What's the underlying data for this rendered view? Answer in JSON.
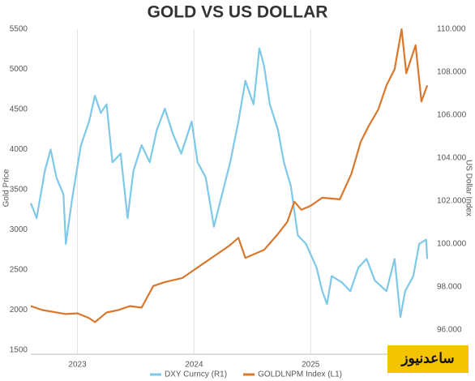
{
  "chart_data": {
    "type": "line",
    "title": "GOLD VS US DOLLAR",
    "ylabel": "Gold Price",
    "y2label": "US Dollar Index",
    "watermark": "ساعدنیوز",
    "xlim": [
      2022.6,
      2026.02
    ],
    "xticks": [
      2023,
      2024,
      2025
    ],
    "ylim": [
      1500,
      5500
    ],
    "yticks": [
      1500,
      2000,
      2500,
      3000,
      3500,
      4000,
      4500,
      5000,
      5500
    ],
    "y2lim": [
      95.05,
      110
    ],
    "y2ticks": [
      {
        "value": 96,
        "label": "96.000"
      },
      {
        "value": 98,
        "label": "98.000"
      },
      {
        "value": 100,
        "label": "100.000"
      },
      {
        "value": 102,
        "label": "102.000"
      },
      {
        "value": 104,
        "label": "104.000"
      },
      {
        "value": 106,
        "label": "106.000"
      },
      {
        "value": 108,
        "label": "108.000"
      },
      {
        "value": 110,
        "label": "110.000"
      }
    ],
    "grid": true,
    "legend": "bottom",
    "series": [
      {
        "name": "DXY Curncy (R1)",
        "color": "#7ec8e8",
        "axis": "y2",
        "x": [
          2022.6,
          2022.65,
          2022.72,
          2022.77,
          2022.82,
          2022.88,
          2022.9,
          2022.96,
          2023.03,
          2023.1,
          2023.15,
          2023.2,
          2023.25,
          2023.3,
          2023.37,
          2023.43,
          2023.48,
          2023.55,
          2023.62,
          2023.68,
          2023.75,
          2023.82,
          2023.89,
          2023.98,
          2024.03,
          2024.1,
          2024.17,
          2024.24,
          2024.31,
          2024.38,
          2024.44,
          2024.51,
          2024.56,
          2024.6,
          2024.65,
          2024.72,
          2024.77,
          2024.83,
          2024.89,
          2024.96,
          2025.05,
          2025.1,
          2025.14,
          2025.18,
          2025.27,
          2025.34,
          2025.41,
          2025.48,
          2025.55,
          2025.65,
          2025.72,
          2025.77,
          2025.81,
          2025.88,
          2025.93,
          2025.99,
          2026.0
        ],
        "values": [
          101.9,
          101.2,
          103.4,
          104.4,
          103.1,
          102.3,
          100.0,
          102.3,
          104.6,
          105.7,
          106.9,
          106.1,
          106.5,
          103.8,
          104.2,
          101.2,
          103.4,
          104.6,
          103.8,
          105.3,
          106.3,
          105.1,
          104.2,
          105.7,
          103.8,
          103.1,
          100.8,
          102.3,
          103.8,
          105.7,
          107.6,
          106.5,
          109.1,
          108.3,
          106.5,
          105.3,
          103.8,
          102.7,
          100.4,
          100.0,
          98.9,
          97.8,
          97.2,
          98.5,
          98.2,
          97.8,
          98.9,
          99.3,
          98.3,
          97.8,
          99.3,
          96.6,
          97.8,
          98.5,
          100.0,
          100.2,
          99.3
        ]
      },
      {
        "name": "GOLDLNPM Index (L1)",
        "color": "#d9782d",
        "x": [
          2022.6,
          2022.7,
          2022.9,
          2023.0,
          2023.1,
          2023.15,
          2023.25,
          2023.35,
          2023.45,
          2023.55,
          2023.65,
          2023.75,
          2023.9,
          2024.0,
          2024.15,
          2024.3,
          2024.38,
          2024.44,
          2024.6,
          2024.72,
          2024.8,
          2024.86,
          2024.92,
          2025.0,
          2025.1,
          2025.25,
          2025.35,
          2025.43,
          2025.5,
          2025.58,
          2025.65,
          2025.72,
          2025.78,
          2025.82,
          2025.9,
          2025.95,
          2026.0
        ],
        "values": [
          2050,
          2000,
          1950,
          1960,
          1900,
          1850,
          1970,
          2000,
          2050,
          2030,
          2300,
          2350,
          2400,
          2500,
          2650,
          2800,
          2900,
          2650,
          2750,
          2950,
          3100,
          3350,
          3250,
          3300,
          3400,
          3380,
          3700,
          4100,
          4300,
          4500,
          4800,
          5000,
          5500,
          4950,
          5300,
          4600,
          4800
        ]
      }
    ]
  }
}
